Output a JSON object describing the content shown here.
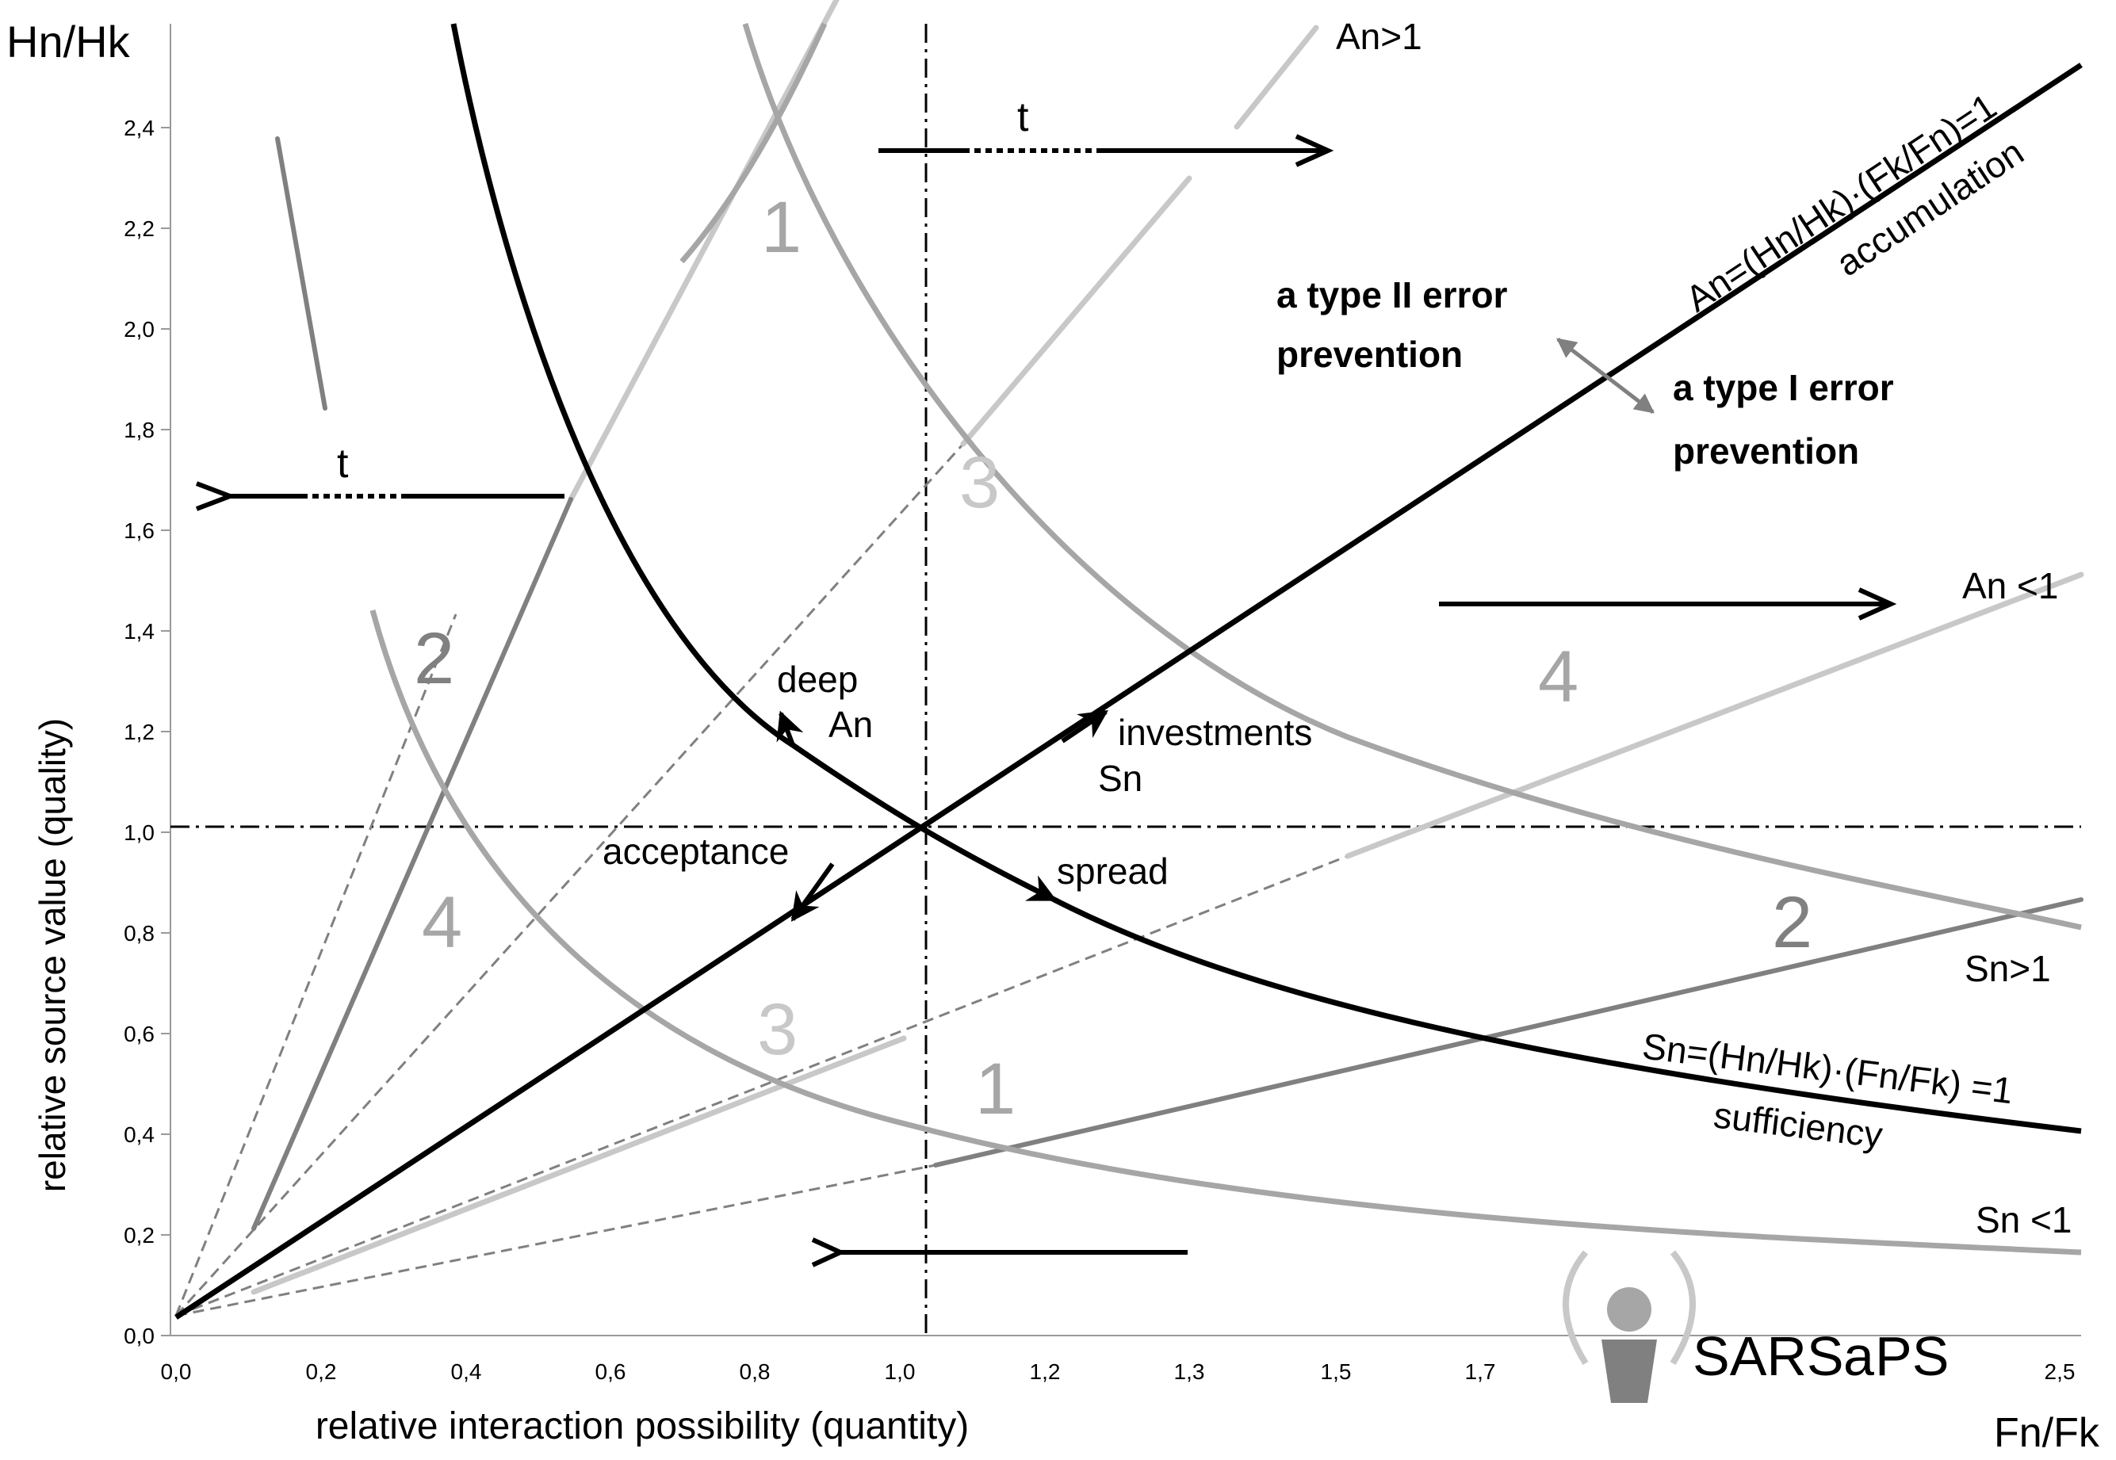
{
  "axes": {
    "y_title_left": "Hn/Hk",
    "y_axis_label": "relative  source  value (quality)",
    "x_axis_label": "relative  interaction  possibility (quantity)",
    "x_title_right": "Fn/Fk",
    "y_ticks": [
      "0,0",
      "0,2",
      "0,4",
      "0,6",
      "0,8",
      "1,0",
      "1,2",
      "1,4",
      "1,6",
      "1,8",
      "2,0",
      "2,2",
      "2,4"
    ],
    "x_ticks": [
      "0,0",
      "0,2",
      "0,4",
      "0,6",
      "0,8",
      "1,0",
      "1,2",
      "1,3",
      "1,5",
      "1,7",
      "2,5"
    ]
  },
  "labels": {
    "an_gt_1": "An>1",
    "an_eq": "An=(Hn/Hk)·(Fk/Fn)=1",
    "accumulation": "accumulation",
    "type2_line1": "a type II error",
    "type2_line2": "prevention",
    "type1_line1": "a type I error",
    "type1_line2": "prevention",
    "an_lt_1": "An <1",
    "sn_gt_1": "Sn>1",
    "sn_eq": "Sn=(Hn/Hk)·(Fn/Fk) =1",
    "sufficiency": "sufficiency",
    "sn_lt_1": "Sn <1",
    "deep": "deep",
    "an": "An",
    "investments": "investments",
    "sn": "Sn",
    "acceptance": "acceptance",
    "spread": "spread",
    "t_top": "t",
    "t_left": "t"
  },
  "zones": {
    "z1_top": "1",
    "z2_left": "2",
    "z3_mid": "3",
    "z4_right": "4",
    "z4_left": "4",
    "z3_low": "3",
    "z1_low": "1",
    "z2_right": "2"
  },
  "logo": {
    "text_a": "SARS",
    "text_b": "a",
    "text_c": "PS"
  },
  "colors": {
    "black": "#000000",
    "dark_gray": "#808080",
    "mid_gray": "#a6a6a6",
    "light_gray": "#c8c8c8"
  }
}
